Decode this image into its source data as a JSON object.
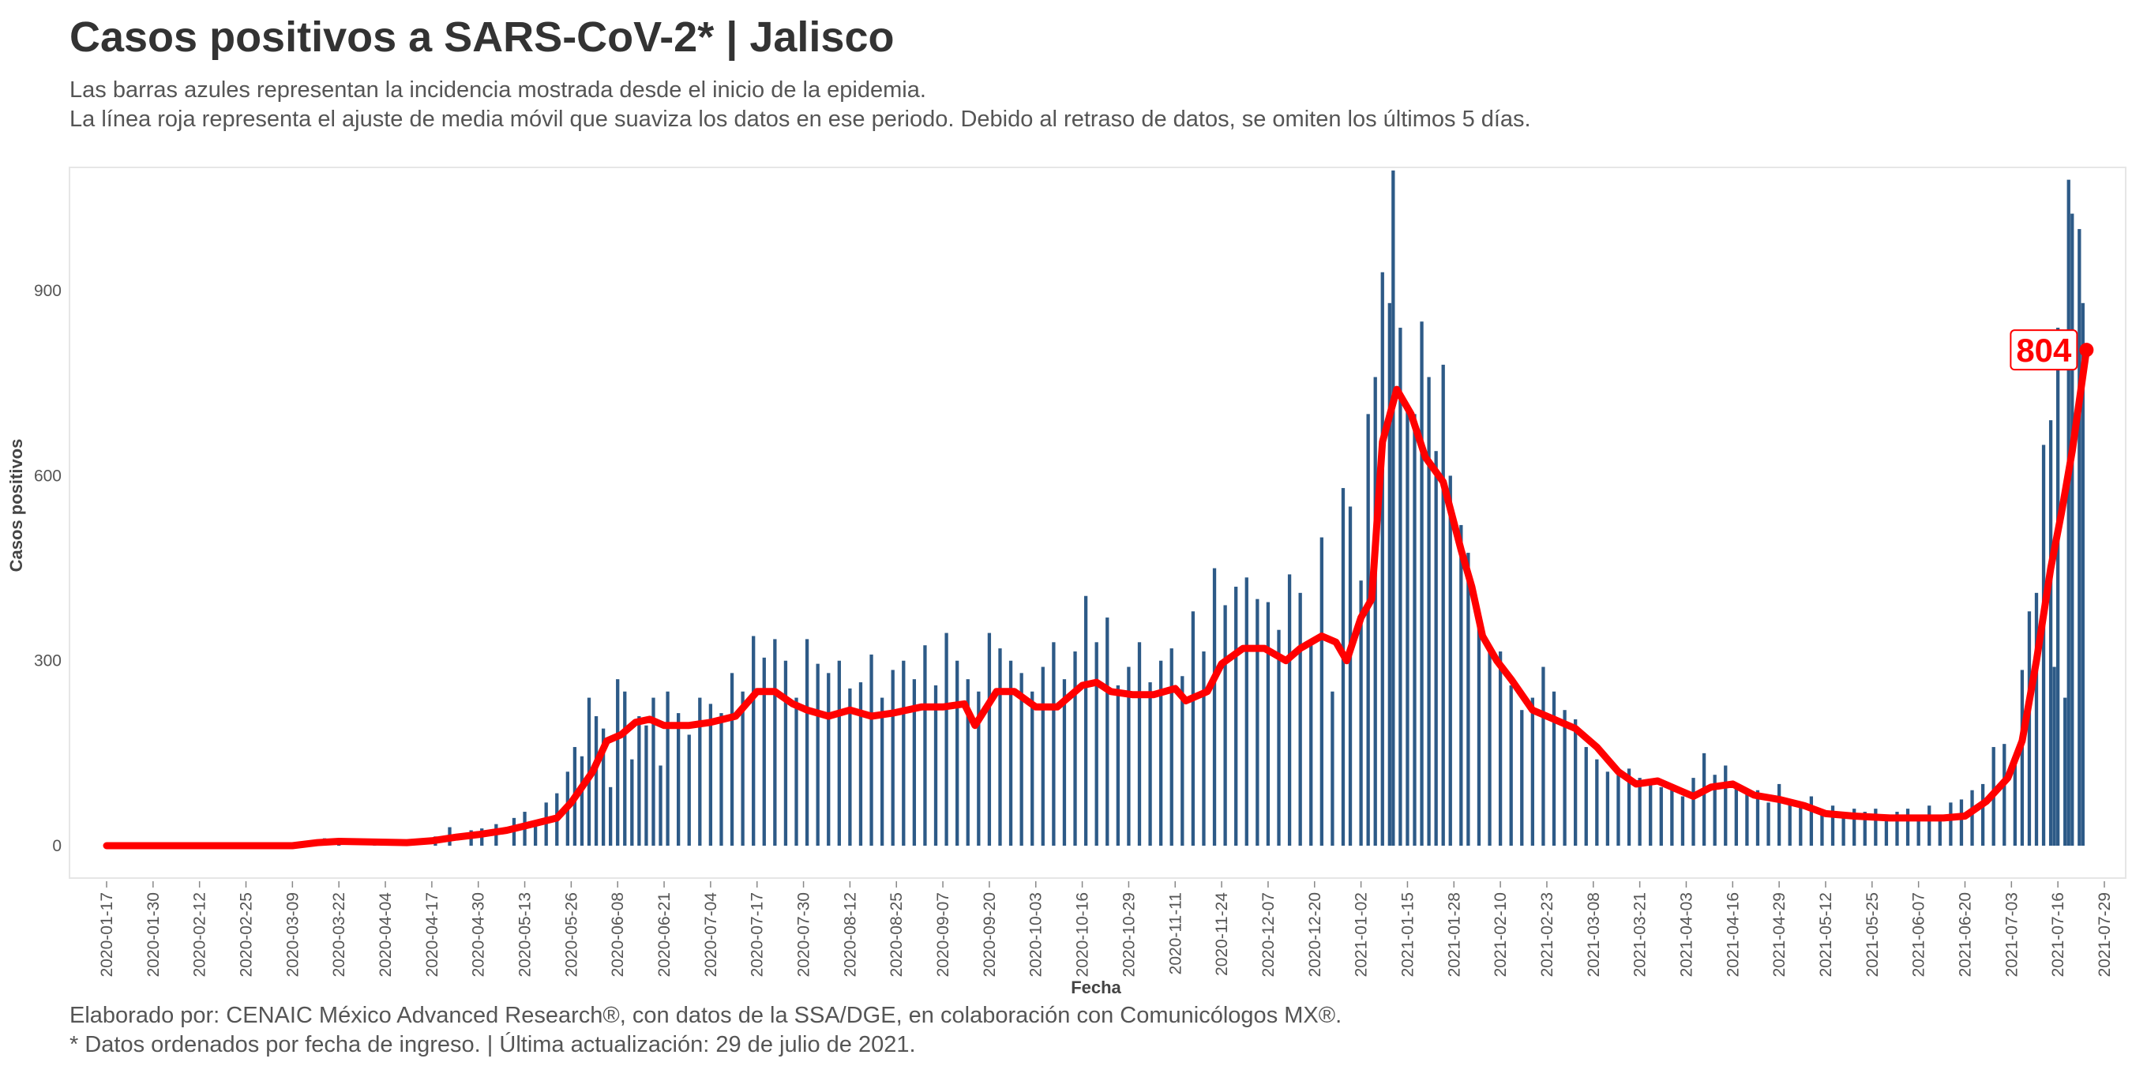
{
  "header": {
    "title": "Casos positivos a SARS-CoV-2* | Jalisco",
    "subtitle_line1": "Las barras azules representan la incidencia mostrada desde el inicio de la epidemia.",
    "subtitle_line2": "La línea roja representa el ajuste de media móvil que suaviza los datos en ese periodo. Debido al retraso de datos, se omiten los últimos 5 días."
  },
  "footer": {
    "caption_line1": "Elaborado por: CENAIC México Advanced Research®, con datos de la SSA/DGE, en colaboración con Comunicólogos MX®.",
    "caption_line2": "* Datos ordenados por fecha de ingreso. | Última actualización: 29 de julio de 2021."
  },
  "colors": {
    "bars": "#2d5a87",
    "line": "#ff0000",
    "panel_border": "#e6e6e6"
  },
  "chart_data": {
    "type": "bar",
    "xlabel": "Fecha",
    "ylabel": "Casos positivos",
    "x_range": [
      "2020-01-17",
      "2021-07-29"
    ],
    "ylim": [
      0,
      1100
    ],
    "y_ticks": [
      0,
      300,
      600,
      900
    ],
    "x_ticks": [
      "2020-01-17",
      "2020-01-30",
      "2020-02-12",
      "2020-02-25",
      "2020-03-09",
      "2020-03-22",
      "2020-04-04",
      "2020-04-17",
      "2020-04-30",
      "2020-05-13",
      "2020-05-26",
      "2020-06-08",
      "2020-06-21",
      "2020-07-04",
      "2020-07-17",
      "2020-07-30",
      "2020-08-12",
      "2020-08-25",
      "2020-09-07",
      "2020-09-20",
      "2020-10-03",
      "2020-10-16",
      "2020-10-29",
      "2020-11-11",
      "2020-11-24",
      "2020-12-07",
      "2020-12-20",
      "2021-01-02",
      "2021-01-15",
      "2021-01-28",
      "2021-02-10",
      "2021-02-23",
      "2021-03-08",
      "2021-03-21",
      "2021-04-03",
      "2021-04-16",
      "2021-04-29",
      "2021-05-12",
      "2021-05-25",
      "2021-06-07",
      "2021-06-20",
      "2021-07-03",
      "2021-07-16",
      "2021-07-29"
    ],
    "series": [
      {
        "kind": "bars",
        "points": [
          [
            "2020-03-14",
            5
          ],
          [
            "2020-03-18",
            12
          ],
          [
            "2020-03-22",
            8
          ],
          [
            "2020-04-01",
            6
          ],
          [
            "2020-04-10",
            8
          ],
          [
            "2020-04-18",
            15
          ],
          [
            "2020-04-22",
            30
          ],
          [
            "2020-04-28",
            25
          ],
          [
            "2020-05-01",
            28
          ],
          [
            "2020-05-05",
            35
          ],
          [
            "2020-05-10",
            45
          ],
          [
            "2020-05-13",
            55
          ],
          [
            "2020-05-16",
            40
          ],
          [
            "2020-05-19",
            70
          ],
          [
            "2020-05-22",
            85
          ],
          [
            "2020-05-25",
            120
          ],
          [
            "2020-05-27",
            160
          ],
          [
            "2020-05-29",
            145
          ],
          [
            "2020-05-31",
            240
          ],
          [
            "2020-06-02",
            210
          ],
          [
            "2020-06-04",
            190
          ],
          [
            "2020-06-06",
            95
          ],
          [
            "2020-06-08",
            270
          ],
          [
            "2020-06-10",
            250
          ],
          [
            "2020-06-12",
            140
          ],
          [
            "2020-06-14",
            210
          ],
          [
            "2020-06-16",
            195
          ],
          [
            "2020-06-18",
            240
          ],
          [
            "2020-06-20",
            130
          ],
          [
            "2020-06-22",
            250
          ],
          [
            "2020-06-25",
            215
          ],
          [
            "2020-06-28",
            180
          ],
          [
            "2020-07-01",
            240
          ],
          [
            "2020-07-04",
            230
          ],
          [
            "2020-07-07",
            215
          ],
          [
            "2020-07-10",
            280
          ],
          [
            "2020-07-13",
            250
          ],
          [
            "2020-07-16",
            340
          ],
          [
            "2020-07-19",
            305
          ],
          [
            "2020-07-22",
            335
          ],
          [
            "2020-07-25",
            300
          ],
          [
            "2020-07-28",
            240
          ],
          [
            "2020-07-31",
            335
          ],
          [
            "2020-08-03",
            295
          ],
          [
            "2020-08-06",
            280
          ],
          [
            "2020-08-09",
            300
          ],
          [
            "2020-08-12",
            255
          ],
          [
            "2020-08-15",
            265
          ],
          [
            "2020-08-18",
            310
          ],
          [
            "2020-08-21",
            240
          ],
          [
            "2020-08-24",
            285
          ],
          [
            "2020-08-27",
            300
          ],
          [
            "2020-08-30",
            270
          ],
          [
            "2020-09-02",
            325
          ],
          [
            "2020-09-05",
            260
          ],
          [
            "2020-09-08",
            345
          ],
          [
            "2020-09-11",
            300
          ],
          [
            "2020-09-14",
            270
          ],
          [
            "2020-09-17",
            250
          ],
          [
            "2020-09-20",
            345
          ],
          [
            "2020-09-23",
            320
          ],
          [
            "2020-09-26",
            300
          ],
          [
            "2020-09-29",
            280
          ],
          [
            "2020-10-02",
            250
          ],
          [
            "2020-10-05",
            290
          ],
          [
            "2020-10-08",
            330
          ],
          [
            "2020-10-11",
            270
          ],
          [
            "2020-10-14",
            315
          ],
          [
            "2020-10-17",
            405
          ],
          [
            "2020-10-20",
            330
          ],
          [
            "2020-10-23",
            370
          ],
          [
            "2020-10-26",
            260
          ],
          [
            "2020-10-29",
            290
          ],
          [
            "2020-11-01",
            330
          ],
          [
            "2020-11-04",
            265
          ],
          [
            "2020-11-07",
            300
          ],
          [
            "2020-11-10",
            320
          ],
          [
            "2020-11-13",
            275
          ],
          [
            "2020-11-16",
            380
          ],
          [
            "2020-11-19",
            315
          ],
          [
            "2020-11-22",
            450
          ],
          [
            "2020-11-25",
            390
          ],
          [
            "2020-11-28",
            420
          ],
          [
            "2020-12-01",
            435
          ],
          [
            "2020-12-04",
            400
          ],
          [
            "2020-12-07",
            395
          ],
          [
            "2020-12-10",
            350
          ],
          [
            "2020-12-13",
            440
          ],
          [
            "2020-12-16",
            410
          ],
          [
            "2020-12-19",
            330
          ],
          [
            "2020-12-22",
            500
          ],
          [
            "2020-12-25",
            250
          ],
          [
            "2020-12-28",
            580
          ],
          [
            "2020-12-30",
            550
          ],
          [
            "2021-01-02",
            430
          ],
          [
            "2021-01-04",
            700
          ],
          [
            "2021-01-06",
            760
          ],
          [
            "2021-01-08",
            930
          ],
          [
            "2021-01-10",
            880
          ],
          [
            "2021-01-11",
            1095
          ],
          [
            "2021-01-13",
            840
          ],
          [
            "2021-01-15",
            710
          ],
          [
            "2021-01-17",
            700
          ],
          [
            "2021-01-19",
            850
          ],
          [
            "2021-01-21",
            760
          ],
          [
            "2021-01-23",
            640
          ],
          [
            "2021-01-25",
            780
          ],
          [
            "2021-01-27",
            600
          ],
          [
            "2021-01-30",
            520
          ],
          [
            "2021-02-01",
            475
          ],
          [
            "2021-02-04",
            360
          ],
          [
            "2021-02-07",
            320
          ],
          [
            "2021-02-10",
            315
          ],
          [
            "2021-02-13",
            260
          ],
          [
            "2021-02-16",
            220
          ],
          [
            "2021-02-19",
            240
          ],
          [
            "2021-02-22",
            290
          ],
          [
            "2021-02-25",
            250
          ],
          [
            "2021-02-28",
            220
          ],
          [
            "2021-03-03",
            205
          ],
          [
            "2021-03-06",
            160
          ],
          [
            "2021-03-09",
            140
          ],
          [
            "2021-03-12",
            120
          ],
          [
            "2021-03-15",
            115
          ],
          [
            "2021-03-18",
            125
          ],
          [
            "2021-03-21",
            110
          ],
          [
            "2021-03-24",
            100
          ],
          [
            "2021-03-27",
            95
          ],
          [
            "2021-03-30",
            90
          ],
          [
            "2021-04-02",
            80
          ],
          [
            "2021-04-05",
            110
          ],
          [
            "2021-04-08",
            150
          ],
          [
            "2021-04-11",
            115
          ],
          [
            "2021-04-14",
            130
          ],
          [
            "2021-04-17",
            100
          ],
          [
            "2021-04-20",
            85
          ],
          [
            "2021-04-23",
            90
          ],
          [
            "2021-04-26",
            70
          ],
          [
            "2021-04-29",
            100
          ],
          [
            "2021-05-02",
            75
          ],
          [
            "2021-05-05",
            70
          ],
          [
            "2021-05-08",
            80
          ],
          [
            "2021-05-11",
            55
          ],
          [
            "2021-05-14",
            65
          ],
          [
            "2021-05-17",
            50
          ],
          [
            "2021-05-20",
            60
          ],
          [
            "2021-05-23",
            55
          ],
          [
            "2021-05-26",
            60
          ],
          [
            "2021-05-29",
            50
          ],
          [
            "2021-06-01",
            55
          ],
          [
            "2021-06-04",
            60
          ],
          [
            "2021-06-07",
            50
          ],
          [
            "2021-06-10",
            65
          ],
          [
            "2021-06-13",
            45
          ],
          [
            "2021-06-16",
            70
          ],
          [
            "2021-06-19",
            75
          ],
          [
            "2021-06-22",
            90
          ],
          [
            "2021-06-25",
            100
          ],
          [
            "2021-06-28",
            160
          ],
          [
            "2021-07-01",
            165
          ],
          [
            "2021-07-04",
            140
          ],
          [
            "2021-07-06",
            285
          ],
          [
            "2021-07-08",
            380
          ],
          [
            "2021-07-10",
            410
          ],
          [
            "2021-07-12",
            650
          ],
          [
            "2021-07-14",
            690
          ],
          [
            "2021-07-15",
            290
          ],
          [
            "2021-07-16",
            840
          ],
          [
            "2021-07-18",
            240
          ],
          [
            "2021-07-19",
            1080
          ],
          [
            "2021-07-20",
            1025
          ],
          [
            "2021-07-22",
            1000
          ],
          [
            "2021-07-23",
            880
          ]
        ]
      },
      {
        "kind": "line",
        "points": [
          [
            "2020-01-17",
            0
          ],
          [
            "2020-03-09",
            0
          ],
          [
            "2020-03-16",
            5
          ],
          [
            "2020-03-22",
            7
          ],
          [
            "2020-04-10",
            5
          ],
          [
            "2020-04-17",
            8
          ],
          [
            "2020-04-24",
            14
          ],
          [
            "2020-04-30",
            18
          ],
          [
            "2020-05-08",
            25
          ],
          [
            "2020-05-13",
            32
          ],
          [
            "2020-05-22",
            45
          ],
          [
            "2020-05-26",
            70
          ],
          [
            "2020-06-01",
            120
          ],
          [
            "2020-06-05",
            170
          ],
          [
            "2020-06-09",
            180
          ],
          [
            "2020-06-13",
            200
          ],
          [
            "2020-06-17",
            205
          ],
          [
            "2020-06-21",
            195
          ],
          [
            "2020-06-28",
            195
          ],
          [
            "2020-07-04",
            200
          ],
          [
            "2020-07-11",
            210
          ],
          [
            "2020-07-17",
            250
          ],
          [
            "2020-07-22",
            250
          ],
          [
            "2020-07-27",
            230
          ],
          [
            "2020-07-31",
            220
          ],
          [
            "2020-08-06",
            210
          ],
          [
            "2020-08-12",
            220
          ],
          [
            "2020-08-18",
            210
          ],
          [
            "2020-08-24",
            215
          ],
          [
            "2020-09-01",
            225
          ],
          [
            "2020-09-07",
            225
          ],
          [
            "2020-09-13",
            230
          ],
          [
            "2020-09-16",
            195
          ],
          [
            "2020-09-22",
            250
          ],
          [
            "2020-09-27",
            250
          ],
          [
            "2020-10-03",
            225
          ],
          [
            "2020-10-09",
            225
          ],
          [
            "2020-10-16",
            260
          ],
          [
            "2020-10-20",
            265
          ],
          [
            "2020-10-24",
            250
          ],
          [
            "2020-10-30",
            245
          ],
          [
            "2020-11-05",
            245
          ],
          [
            "2020-11-11",
            255
          ],
          [
            "2020-11-14",
            235
          ],
          [
            "2020-11-20",
            250
          ],
          [
            "2020-11-24",
            295
          ],
          [
            "2020-11-30",
            320
          ],
          [
            "2020-12-06",
            320
          ],
          [
            "2020-12-12",
            300
          ],
          [
            "2020-12-16",
            320
          ],
          [
            "2020-12-22",
            340
          ],
          [
            "2020-12-26",
            330
          ],
          [
            "2020-12-29",
            300
          ],
          [
            "2021-01-02",
            370
          ],
          [
            "2021-01-05",
            400
          ],
          [
            "2021-01-08",
            655
          ],
          [
            "2021-01-12",
            740
          ],
          [
            "2021-01-16",
            700
          ],
          [
            "2021-01-20",
            630
          ],
          [
            "2021-01-25",
            590
          ],
          [
            "2021-01-30",
            480
          ],
          [
            "2021-02-02",
            420
          ],
          [
            "2021-02-05",
            340
          ],
          [
            "2021-02-09",
            300
          ],
          [
            "2021-02-13",
            270
          ],
          [
            "2021-02-19",
            220
          ],
          [
            "2021-02-25",
            205
          ],
          [
            "2021-03-03",
            190
          ],
          [
            "2021-03-09",
            160
          ],
          [
            "2021-03-15",
            120
          ],
          [
            "2021-03-20",
            100
          ],
          [
            "2021-03-26",
            105
          ],
          [
            "2021-04-01",
            90
          ],
          [
            "2021-04-05",
            80
          ],
          [
            "2021-04-10",
            95
          ],
          [
            "2021-04-16",
            100
          ],
          [
            "2021-04-22",
            82
          ],
          [
            "2021-04-29",
            75
          ],
          [
            "2021-05-06",
            65
          ],
          [
            "2021-05-12",
            52
          ],
          [
            "2021-05-20",
            48
          ],
          [
            "2021-05-30",
            45
          ],
          [
            "2021-06-07",
            45
          ],
          [
            "2021-06-14",
            45
          ],
          [
            "2021-06-20",
            48
          ],
          [
            "2021-06-26",
            72
          ],
          [
            "2021-07-02",
            110
          ],
          [
            "2021-07-06",
            170
          ],
          [
            "2021-07-10",
            300
          ],
          [
            "2021-07-14",
            450
          ],
          [
            "2021-07-17",
            540
          ],
          [
            "2021-07-20",
            640
          ],
          [
            "2021-07-24",
            804
          ]
        ]
      }
    ],
    "annotations": [
      {
        "text": "804",
        "x": "2021-07-24",
        "y": 804
      }
    ]
  }
}
